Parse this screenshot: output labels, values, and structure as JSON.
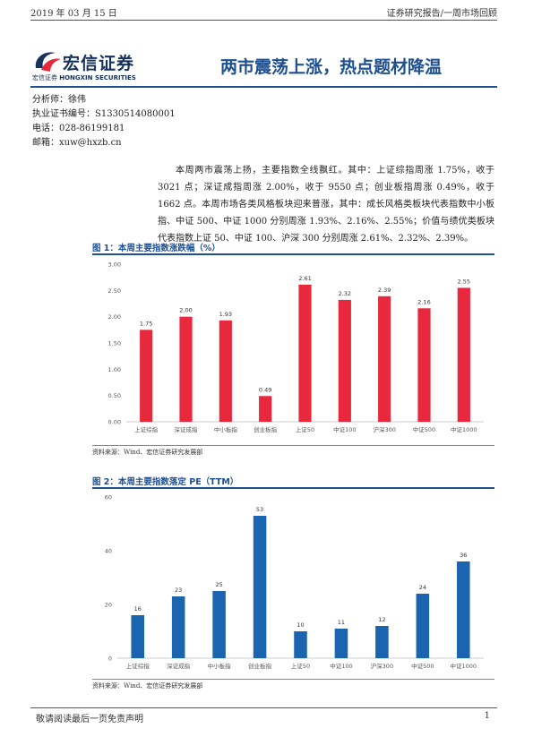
{
  "header": {
    "date": "2019 年 03 月 15 日",
    "category": "证券研究报告/一周市场回顾"
  },
  "logo": {
    "cn_name": "宏信证券",
    "en_prefix": "宏信证券",
    "en_name": "HONGXIN SECURITIES",
    "colors": {
      "navy": "#16325c",
      "red": "#e8283c"
    }
  },
  "report_title": "两市震荡上涨，热点题材降温",
  "analyst": {
    "name_line": "分析师：徐伟",
    "license_line": "执业证书编号：S1330514080001",
    "phone_line": "电话：028-86199181",
    "email_line": "邮箱：xuw@hxzb.cn"
  },
  "summary": "本周两市震荡上扬，主要指数全线飘红。其中：上证综指周涨 1.75%，收于 3021 点；深证成指周涨 2.00%，收于 9550 点；创业板指周涨 0.49%，收于 1662 点。本周市场各类风格板块迎来普涨，其中：成长风格类板块代表指数中小板指、中证 500、中证 1000 分别周涨 1.93%、2.16%、2.55%；价值与绩优类板块代表指数上证 50、中证 100、沪深 300 分别周涨 2.61%、2.32%、2.39%。",
  "figure1": {
    "title": "图 1：本周主要指数涨跌幅（%）",
    "source": "资料来源：Wind、宏信证券研究发展部"
  },
  "figure2": {
    "title": "图 2：本周主要指数落定 PE（TTM）",
    "source": "资料来源：Wind、宏信证券研究发展部"
  },
  "chart_data": [
    {
      "type": "bar",
      "title": "图 1：本周主要指数涨跌幅（%）",
      "categories": [
        "上证综指",
        "深证成指",
        "中小板指",
        "创业板指",
        "上证50",
        "中证100",
        "沪深300",
        "中证500",
        "中证1000"
      ],
      "values": [
        1.75,
        2.0,
        1.93,
        0.49,
        2.61,
        2.32,
        2.39,
        2.16,
        2.55
      ],
      "value_labels": [
        "1.75",
        "2.00",
        "1.93",
        "0.49",
        "2.61",
        "2.32",
        "2.39",
        "2.16",
        "2.55"
      ],
      "yticks": [
        "0.00",
        "0.50",
        "1.00",
        "1.50",
        "2.00",
        "2.50",
        "3.00"
      ],
      "ylim": [
        0,
        3
      ],
      "grid": false,
      "legend": "none",
      "color": "#e8283c"
    },
    {
      "type": "bar",
      "title": "图 2：本周主要指数落定 PE（TTM）",
      "categories": [
        "上证综指",
        "深证成指",
        "中小板指",
        "创业板指",
        "上证50",
        "中证100",
        "沪深300",
        "中证500",
        "中证1000"
      ],
      "values": [
        16,
        23,
        25,
        53,
        10,
        11,
        12,
        24,
        36
      ],
      "value_labels": [
        "16",
        "23",
        "25",
        "53",
        "10",
        "11",
        "12",
        "24",
        "36"
      ],
      "yticks": [
        "0",
        "20",
        "40",
        "60"
      ],
      "ylim": [
        0,
        60
      ],
      "grid": false,
      "legend": "none",
      "color": "#1a64b0"
    }
  ],
  "footer": {
    "disclaimer": "敬请阅读最后一页免责声明",
    "page": "1"
  }
}
